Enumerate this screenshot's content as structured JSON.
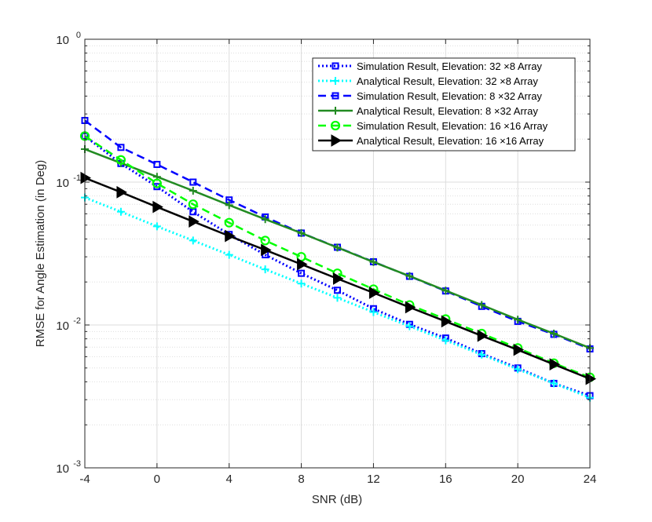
{
  "chart_data": {
    "type": "line",
    "xlabel": "SNR (dB)",
    "ylabel": "RMSE for Angle Estimation (in Deg)",
    "xlim": [
      -4,
      24
    ],
    "ylim": [
      0.001,
      1
    ],
    "yscale": "log",
    "grid": true,
    "legend_position": "top-right",
    "xticks": [
      "-4",
      "0",
      "4",
      "8",
      "12",
      "16",
      "20",
      "24"
    ],
    "yticks": [
      {
        "base": "10",
        "exp": "-3"
      },
      {
        "base": "10",
        "exp": "-2"
      },
      {
        "base": "10",
        "exp": "-1"
      },
      {
        "base": "10",
        "exp": "0"
      }
    ],
    "x": [
      -4,
      -2,
      0,
      2,
      4,
      6,
      8,
      10,
      12,
      14,
      16,
      18,
      20,
      22,
      24
    ],
    "series": [
      {
        "name": "Simulation Result, Elevation: 32 ×8 Array",
        "color": "#0000ff",
        "dash": "dotted",
        "marker": "square",
        "values": [
          0.21,
          0.135,
          0.093,
          0.062,
          0.043,
          0.031,
          0.023,
          0.0175,
          0.013,
          0.0101,
          0.0081,
          0.0063,
          0.005,
          0.0039,
          0.0032
        ]
      },
      {
        "name": "Analytical Result, Elevation: 32 ×8 Array",
        "color": "#00ffff",
        "dash": "dotted",
        "marker": "plus",
        "values": [
          0.078,
          0.062,
          0.049,
          0.039,
          0.031,
          0.0245,
          0.0195,
          0.0155,
          0.0123,
          0.0098,
          0.0078,
          0.0062,
          0.0049,
          0.0039,
          0.0031
        ]
      },
      {
        "name": "Simulation Result, Elevation: 8 ×32 Array",
        "color": "#0000ff",
        "dash": "dashed",
        "marker": "square",
        "values": [
          0.27,
          0.175,
          0.133,
          0.1,
          0.075,
          0.057,
          0.044,
          0.035,
          0.0277,
          0.0219,
          0.0173,
          0.0135,
          0.0106,
          0.0086,
          0.0068
        ]
      },
      {
        "name": "Analytical Result, Elevation: 8 ×32 Array",
        "color": "#228b22",
        "dash": "solid",
        "marker": "plus",
        "values": [
          0.17,
          0.136,
          0.109,
          0.087,
          0.069,
          0.055,
          0.044,
          0.0348,
          0.0276,
          0.022,
          0.0174,
          0.0138,
          0.0109,
          0.0087,
          0.0069
        ]
      },
      {
        "name": "Simulation Result, Elevation: 16 ×16 Array",
        "color": "#00ff00",
        "dash": "dashed",
        "marker": "circle",
        "values": [
          0.21,
          0.143,
          0.098,
          0.07,
          0.052,
          0.039,
          0.03,
          0.023,
          0.0178,
          0.0138,
          0.011,
          0.0087,
          0.0069,
          0.0054,
          0.0043
        ]
      },
      {
        "name": "Analytical Result, Elevation: 16 ×16 Array",
        "color": "#000000",
        "dash": "solid",
        "marker": "triangle-right",
        "values": [
          0.107,
          0.085,
          0.067,
          0.053,
          0.042,
          0.0335,
          0.0266,
          0.0211,
          0.0168,
          0.0133,
          0.0106,
          0.0084,
          0.0067,
          0.0053,
          0.0042
        ]
      }
    ]
  }
}
